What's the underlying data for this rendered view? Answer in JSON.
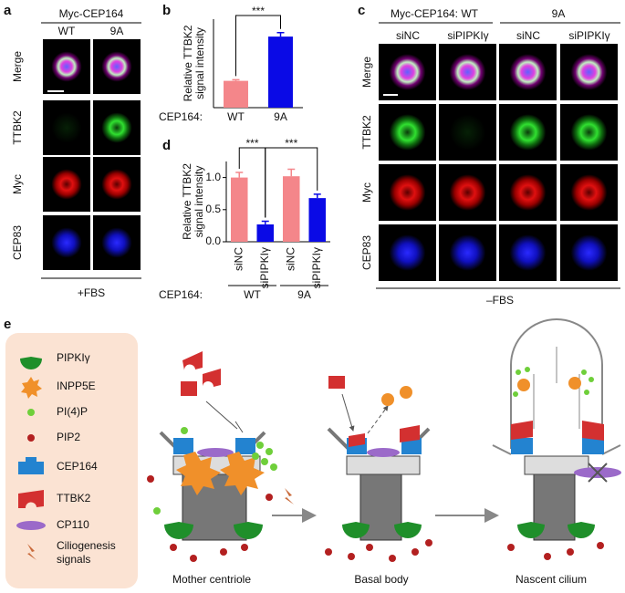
{
  "panel_labels": [
    "a",
    "b",
    "c",
    "d",
    "e"
  ],
  "panel_a": {
    "title": "Myc-CEP164",
    "columns": [
      "WT",
      "9A"
    ],
    "rows": [
      "Merge",
      "TTBK2",
      "Myc",
      "CEP83"
    ],
    "footer": "+FBS"
  },
  "panel_c": {
    "groups": [
      "Myc-CEP164: WT",
      "9A"
    ],
    "columns": [
      "siNC",
      "siPIPKIγ",
      "siNC",
      "siPIPKIγ"
    ],
    "rows": [
      "Merge",
      "TTBK2",
      "Myc",
      "CEP83"
    ],
    "footer": "–FBS"
  },
  "chart_data": [
    {
      "type": "bar",
      "y_label": [
        "Relative TTBK2",
        "signal intensity"
      ],
      "x_label": "CEP164:",
      "categories": [
        "WT",
        "9A"
      ],
      "values": [
        1.0,
        2.65
      ],
      "errors": [
        0.04,
        0.15
      ],
      "colors": [
        "#f4868a",
        "#0a0ae6"
      ],
      "ylim": [
        0,
        3.3
      ],
      "significance": [
        "***"
      ]
    },
    {
      "type": "bar",
      "y_label": [
        "Relative TTBK2",
        "signal intensity"
      ],
      "x_label": "CEP164:",
      "categories": [
        "siNC",
        "siPIPKIγ",
        "siNC",
        "siPIPKIγ"
      ],
      "group_labels": [
        "WT",
        "9A"
      ],
      "values": [
        1.0,
        0.27,
        1.02,
        0.68
      ],
      "errors": [
        0.08,
        0.05,
        0.11,
        0.06
      ],
      "colors": [
        "#f4868a",
        "#0a0ae6",
        "#f4868a",
        "#0a0ae6"
      ],
      "ylim": [
        0,
        1.25
      ],
      "yticks": [
        {
          "value": 0,
          "label": "0.0"
        },
        {
          "value": 0.5,
          "label": "0.5"
        },
        {
          "value": 1.0,
          "label": "1.0"
        }
      ],
      "significance": [
        "***",
        "***"
      ]
    }
  ],
  "panel_e": {
    "legend": [
      "PIPKIγ",
      "INPP5E",
      "PI(4)P",
      "PIP2",
      "CEP164",
      "TTBK2",
      "CP110",
      "Ciliogenesis signals"
    ],
    "stages": [
      "Mother centriole",
      "Basal body",
      "Nascent cilium"
    ]
  }
}
